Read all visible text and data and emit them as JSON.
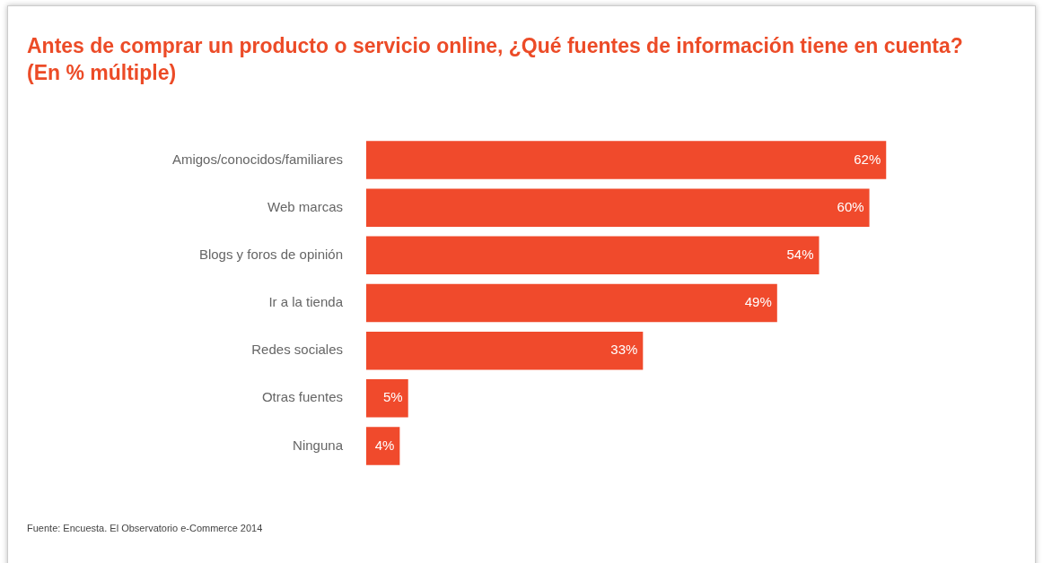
{
  "chart_data": {
    "type": "bar",
    "orientation": "horizontal",
    "title": "Antes de comprar un producto o servicio online, ¿Qué fuentes de información tiene en cuenta? (En % múltiple)",
    "categories": [
      "Amigos/conocidos/familiares",
      "Web marcas",
      "Blogs y foros de opinión",
      "Ir a la tienda",
      "Redes sociales",
      "Otras fuentes",
      "Ninguna"
    ],
    "values": [
      62,
      60,
      54,
      49,
      33,
      5,
      4
    ],
    "value_labels": [
      "62%",
      "60%",
      "54%",
      "49%",
      "33%",
      "5%",
      "4%"
    ],
    "color": "#f04a2c",
    "annotations": [
      "Fuente: Encuesta. El Observatorio e-Commerce 2014"
    ]
  }
}
